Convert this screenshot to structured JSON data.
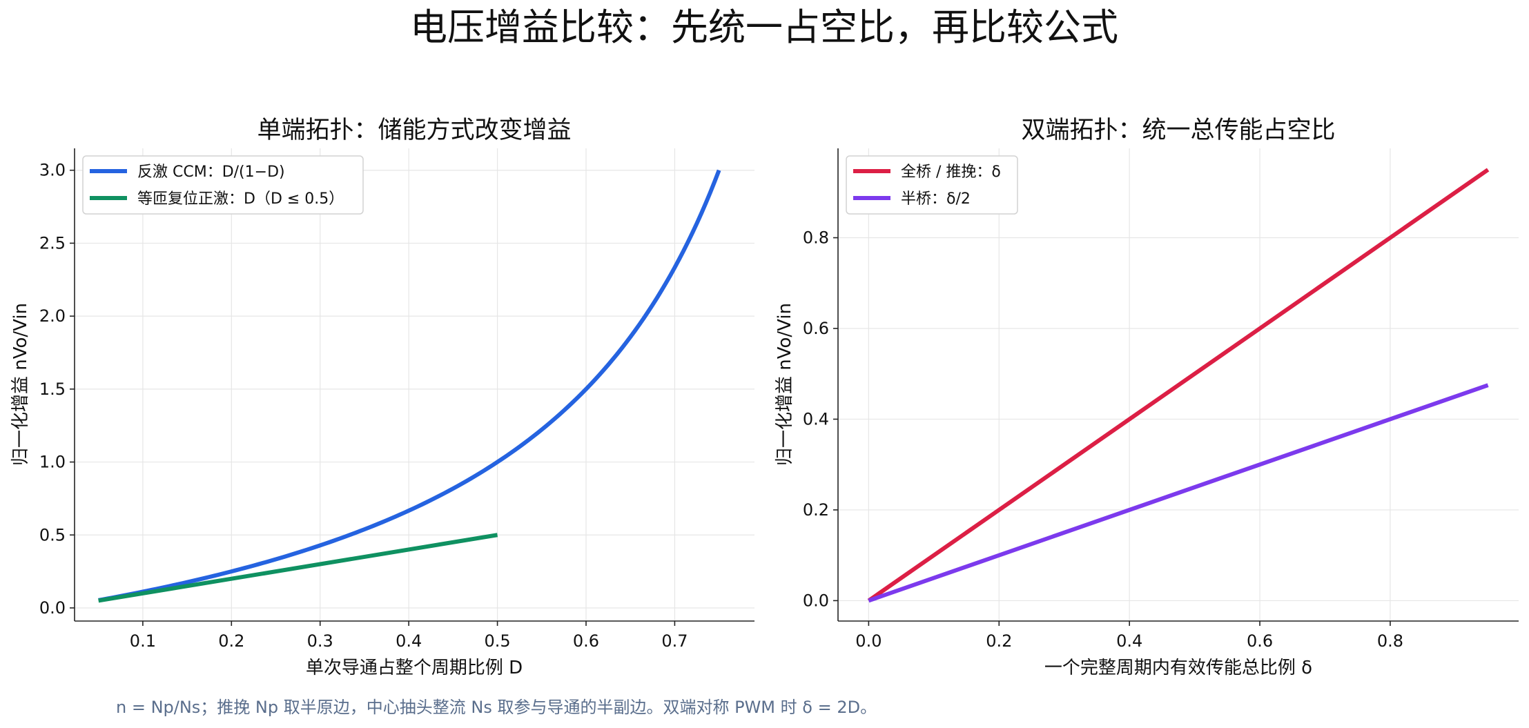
{
  "figure": {
    "suptitle": "电压增益比较：先统一占空比，再比较公式",
    "footnote": "n = Np/Ns；推挽 Np 取半原边，中心抽头整流 Ns 取参与导通的半副边。双端对称 PWM 时 δ = 2D。"
  },
  "chart_data": [
    {
      "type": "line",
      "title": "单端拓扑：储能方式改变增益",
      "xlabel": "单次导通占整个周期比例 D",
      "ylabel": "归一化增益 nVo/Vin",
      "xlim": [
        0.023,
        0.79
      ],
      "ylim": [
        -0.09,
        3.15
      ],
      "xticks": [
        0.1,
        0.2,
        0.3,
        0.4,
        0.5,
        0.6,
        0.7
      ],
      "xtick_labels": [
        "0.1",
        "0.2",
        "0.3",
        "0.4",
        "0.5",
        "0.6",
        "0.7"
      ],
      "yticks": [
        0.0,
        0.5,
        1.0,
        1.5,
        2.0,
        2.5,
        3.0
      ],
      "ytick_labels": [
        "0.0",
        "0.5",
        "1.0",
        "1.5",
        "2.0",
        "2.5",
        "3.0"
      ],
      "grid": true,
      "legend_position": "upper-left",
      "series": [
        {
          "name": "反激 CCM：D/(1−D)",
          "color": "#2563e0",
          "x": [
            0.05,
            0.1,
            0.15,
            0.2,
            0.25,
            0.3,
            0.35,
            0.4,
            0.45,
            0.5,
            0.55,
            0.6,
            0.65,
            0.7,
            0.75
          ],
          "y": [
            0.053,
            0.111,
            0.176,
            0.25,
            0.333,
            0.429,
            0.538,
            0.667,
            0.818,
            1.0,
            1.222,
            1.5,
            1.857,
            2.333,
            3.0
          ]
        },
        {
          "name": "等匝复位正激：D（D ≤ 0.5）",
          "color": "#0f9161",
          "x": [
            0.05,
            0.5
          ],
          "y": [
            0.05,
            0.5
          ]
        }
      ]
    },
    {
      "type": "line",
      "title": "双端拓扑：统一总传能占空比",
      "xlabel": "一个完整周期内有效传能总比例 δ",
      "ylabel": "归一化增益 nVo/Vin",
      "xlim": [
        -0.047,
        0.997
      ],
      "ylim": [
        -0.045,
        0.997
      ],
      "xticks": [
        0.0,
        0.2,
        0.4,
        0.6,
        0.8
      ],
      "xtick_labels": [
        "0.0",
        "0.2",
        "0.4",
        "0.6",
        "0.8"
      ],
      "yticks": [
        0.0,
        0.2,
        0.4,
        0.6,
        0.8
      ],
      "ytick_labels": [
        "0.0",
        "0.2",
        "0.4",
        "0.6",
        "0.8"
      ],
      "grid": true,
      "legend_position": "upper-left",
      "series": [
        {
          "name": "全桥 / 推挽：δ",
          "color": "#dc1f45",
          "x": [
            0.0,
            0.95
          ],
          "y": [
            0.0,
            0.95
          ]
        },
        {
          "name": "半桥：δ/2",
          "color": "#7c3aed",
          "x": [
            0.0,
            0.95
          ],
          "y": [
            0.0,
            0.475
          ]
        }
      ]
    }
  ]
}
